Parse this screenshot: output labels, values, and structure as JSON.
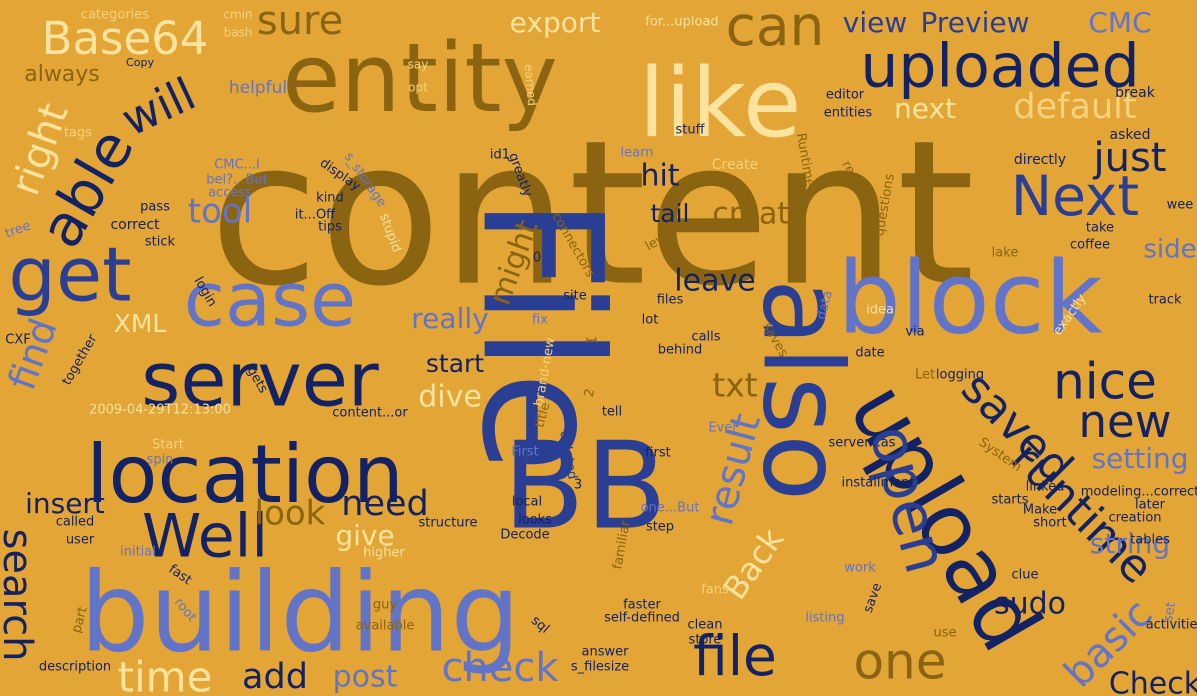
{
  "palette": {
    "background": "#E3A535",
    "dark_gold": "#8A6410",
    "navy": "#122263",
    "royal_blue": "#2A3F93",
    "periwinkle": "#6274C8",
    "cream": "#FCE39E",
    "pale_gold": "#F5D27D"
  },
  "words": [
    "content",
    "File",
    "BB",
    "building",
    "also",
    "entity",
    "like",
    "block",
    "location",
    "server",
    "case",
    "upload",
    "uploaded",
    "get",
    "Well",
    "open",
    "able",
    "Next",
    "nice",
    "new",
    "saved",
    "runtime",
    "one",
    "file",
    "check",
    "time",
    "add",
    "post",
    "result",
    "Back",
    "basic",
    "sudo",
    "Check",
    "search",
    "find",
    "insert",
    "look",
    "need",
    "give",
    "start",
    "dive",
    "really",
    "leave",
    "txt",
    "XML",
    "tool",
    "right",
    "will",
    "sure",
    "can",
    "Base64",
    "export",
    "view",
    "Preview",
    "CMC",
    "default",
    "next",
    "just",
    "hit",
    "tail",
    "create",
    "might",
    "side",
    "setting",
    "string",
    "categories",
    "cmin",
    "bash",
    "Copy",
    "always",
    "helpful",
    "say",
    "opt",
    "earned",
    "for...upload",
    "editor",
    "entities",
    "break",
    "asked",
    "stuff",
    "learn",
    "tags",
    "CMC...I",
    "bel?...But",
    "access",
    "kind",
    "it...Off",
    "tips",
    "display",
    "s_storage",
    "id1",
    "greatly",
    "directly",
    "Create",
    "Runtime",
    "reached",
    "questions",
    "take",
    "coffee",
    "wee",
    "tree",
    "correct",
    "stick",
    "pass",
    "stupid",
    "connectors",
    "0",
    "level",
    "lake",
    "login",
    "site",
    "files",
    "CXF",
    "together",
    "gets",
    "2009-04-29T12:13:00",
    "content...or",
    "1",
    "fix",
    "brand-new",
    "lot",
    "behind",
    "calls",
    "saves",
    "data",
    "idea",
    "via",
    "exactly",
    "track",
    "logging",
    "date",
    "Let",
    "2",
    "title",
    "tell",
    "Start",
    "spin",
    "First",
    "deleted",
    "3",
    "first",
    "Ever",
    "server...as",
    "System",
    "installment",
    "linked",
    "starts",
    "modeling...correct",
    "later",
    "called",
    "user",
    "initial",
    "local",
    "looks",
    "Decode",
    "one...But",
    "step",
    "structure",
    "familiar",
    "short",
    "Make",
    "creation",
    "tables",
    "higher",
    "fast",
    "work",
    "save",
    "clue",
    "fans",
    "part",
    "root",
    "faster",
    "self-defined",
    "guy",
    "available",
    "listing",
    "use",
    "activities",
    "set",
    "sql",
    "answer",
    "s_filesize",
    "clean",
    "store",
    "description"
  ]
}
